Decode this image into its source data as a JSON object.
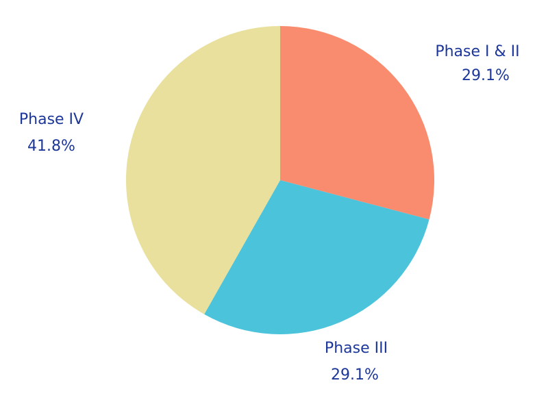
{
  "chart_data": {
    "type": "pie",
    "start": "top",
    "direction": "clockwise",
    "slices": [
      {
        "label": "Phase I & II",
        "value": 29.1,
        "value_label": "29.1%",
        "color": "#f98b6e"
      },
      {
        "label": "Phase III",
        "value": 29.1,
        "value_label": "29.1%",
        "color": "#4bc4db"
      },
      {
        "label": "Phase IV",
        "value": 41.8,
        "value_label": "41.8%",
        "color": "#e8e09c"
      }
    ],
    "label_color": "#1c3799"
  }
}
